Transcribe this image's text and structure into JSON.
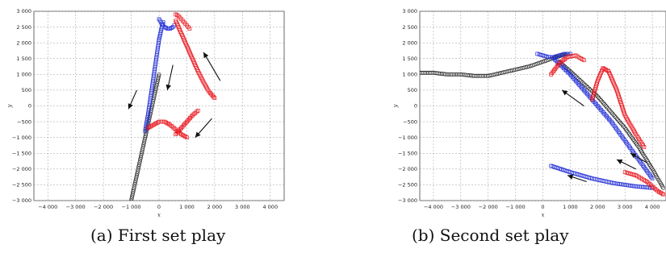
{
  "captions": [
    "(a) First set play",
    "(b) Second set play"
  ],
  "colors": {
    "red": "#e8141c",
    "blue": "#2431d6",
    "black": "#111111",
    "grid": "#9a9a9a"
  },
  "chart_data": [
    {
      "type": "scatter",
      "caption": "(a) First set play",
      "xlabel": "x",
      "ylabel": "y",
      "xlim": [
        -4500,
        4500
      ],
      "ylim": [
        -3000,
        3000
      ],
      "xticks": [
        -4000,
        -3000,
        -2000,
        -1000,
        0,
        1000,
        2000,
        3000,
        4000
      ],
      "yticks": [
        -3000,
        -2500,
        -2000,
        -1500,
        -1000,
        -500,
        0,
        500,
        1000,
        1500,
        2000,
        2500,
        3000
      ],
      "tick_labels_x": [
        "−4 000",
        "−3 000",
        "−2 000",
        "−1 000",
        "0",
        "1 000",
        "2 000",
        "3 000",
        "4 000"
      ],
      "tick_labels_y": [
        "−3 000",
        "−2 500",
        "−2 000",
        "−1 500",
        "−1 000",
        "−500",
        "0",
        "500",
        "1 000",
        "1 500",
        "2 000",
        "2 500",
        "3 000"
      ],
      "grid": true,
      "series": [
        {
          "color": "black",
          "marker": "circle-open",
          "x": [
            -1000,
            -900,
            -800,
            -700,
            -600,
            -500,
            -400,
            -300,
            -200,
            -100,
            0
          ],
          "y": [
            -3000,
            -2600,
            -2200,
            -1800,
            -1400,
            -1000,
            -600,
            -200,
            200,
            600,
            1000
          ]
        },
        {
          "color": "blue",
          "marker": "square-open",
          "x": [
            -500,
            -400,
            -300,
            -200,
            -100,
            0,
            100,
            150
          ],
          "y": [
            -800,
            -300,
            300,
            900,
            1500,
            2100,
            2500,
            2650
          ]
        },
        {
          "color": "blue",
          "marker": "square-open",
          "x": [
            0,
            100,
            200,
            300,
            400,
            500,
            550
          ],
          "y": [
            2750,
            2600,
            2500,
            2450,
            2450,
            2500,
            2550
          ]
        },
        {
          "color": "red",
          "marker": "square-open",
          "x": [
            600,
            800,
            1000,
            1200,
            1400,
            1600,
            1800,
            2000
          ],
          "y": [
            2700,
            2300,
            1900,
            1500,
            1100,
            750,
            450,
            250
          ]
        },
        {
          "color": "red",
          "marker": "square-open",
          "x": [
            600,
            700,
            800,
            900,
            1000,
            1100
          ],
          "y": [
            2900,
            2850,
            2750,
            2650,
            2550,
            2450
          ]
        },
        {
          "color": "red",
          "marker": "square-open",
          "x": [
            -400,
            -200,
            0,
            200,
            400,
            600,
            800,
            1000
          ],
          "y": [
            -700,
            -600,
            -500,
            -500,
            -600,
            -750,
            -900,
            -1000
          ]
        },
        {
          "color": "red",
          "marker": "square-open",
          "x": [
            600,
            800,
            1000,
            1200,
            1400
          ],
          "y": [
            -900,
            -700,
            -500,
            -300,
            -150
          ]
        }
      ],
      "arrows": [
        {
          "from": [
            -800,
            500
          ],
          "to": [
            -1100,
            -100
          ]
        },
        {
          "from": [
            500,
            1300
          ],
          "to": [
            300,
            500
          ]
        },
        {
          "from": [
            2200,
            800
          ],
          "to": [
            1600,
            1700
          ]
        },
        {
          "from": [
            1900,
            -400
          ],
          "to": [
            1300,
            -1000
          ]
        }
      ]
    },
    {
      "type": "scatter",
      "caption": "(b) Second set play",
      "xlabel": "x",
      "ylabel": "y",
      "xlim": [
        -4500,
        4500
      ],
      "ylim": [
        -3000,
        3000
      ],
      "xticks": [
        -4000,
        -3000,
        -2000,
        -1000,
        0,
        1000,
        2000,
        3000,
        4000
      ],
      "yticks": [
        -3000,
        -2500,
        -2000,
        -1500,
        -1000,
        -500,
        0,
        500,
        1000,
        1500,
        2000,
        2500,
        3000
      ],
      "tick_labels_x": [
        "−4 000",
        "−3 000",
        "−2 000",
        "−1 000",
        "0",
        "1 000",
        "2 000",
        "3 000",
        "4 000"
      ],
      "tick_labels_y": [
        "−3 000",
        "−2 500",
        "−2 000",
        "−1 500",
        "−1 000",
        "−500",
        "0",
        "500",
        "1 000",
        "1 500",
        "2 000",
        "2 500",
        "3 000"
      ],
      "grid": true,
      "series": [
        {
          "color": "black",
          "marker": "circle-open",
          "x": [
            -4500,
            -4000,
            -3500,
            -3000,
            -2500,
            -2000,
            -1500,
            -1000,
            -500,
            0,
            500,
            900
          ],
          "y": [
            1050,
            1050,
            1000,
            1000,
            950,
            950,
            1050,
            1150,
            1250,
            1400,
            1550,
            1650
          ]
        },
        {
          "color": "black",
          "marker": "circle-open",
          "x": [
            600,
            1000,
            1500,
            2000,
            2500,
            3000,
            3500,
            4000,
            4400
          ],
          "y": [
            1400,
            1100,
            700,
            300,
            -200,
            -700,
            -1300,
            -2000,
            -2600
          ]
        },
        {
          "color": "blue",
          "marker": "square-open",
          "x": [
            -200,
            0,
            200,
            400,
            600,
            800,
            1000
          ],
          "y": [
            1650,
            1600,
            1550,
            1550,
            1600,
            1650,
            1650
          ]
        },
        {
          "color": "blue",
          "marker": "square-open",
          "x": [
            400,
            1000,
            1500,
            2000,
            2500,
            3000,
            3500,
            4000
          ],
          "y": [
            1500,
            1000,
            500,
            0,
            -500,
            -1100,
            -1700,
            -2300
          ]
        },
        {
          "color": "blue",
          "marker": "square-open",
          "x": [
            300,
            1000,
            1800,
            2600,
            3400,
            4000
          ],
          "y": [
            -1900,
            -2100,
            -2300,
            -2450,
            -2550,
            -2600
          ]
        },
        {
          "color": "red",
          "marker": "square-open",
          "x": [
            300,
            600,
            900,
            1200,
            1500
          ],
          "y": [
            1000,
            1350,
            1550,
            1600,
            1450
          ]
        },
        {
          "color": "red",
          "marker": "square-open",
          "x": [
            1800,
            2000,
            2200,
            2400,
            2700,
            3000,
            3400,
            3700
          ],
          "y": [
            200,
            800,
            1200,
            1100,
            500,
            -300,
            -900,
            -1300
          ]
        },
        {
          "color": "red",
          "marker": "square-open",
          "x": [
            3000,
            3400,
            3800,
            4200,
            4400
          ],
          "y": [
            -2100,
            -2200,
            -2400,
            -2700,
            -2800
          ]
        }
      ],
      "arrows": [
        {
          "from": [
            1500,
            0
          ],
          "to": [
            700,
            500
          ]
        },
        {
          "from": [
            3400,
            -2000
          ],
          "to": [
            2700,
            -1700
          ]
        },
        {
          "from": [
            1600,
            -2400
          ],
          "to": [
            900,
            -2200
          ]
        },
        {
          "from": [
            3800,
            -1800
          ],
          "to": [
            3200,
            -1500
          ]
        }
      ]
    }
  ]
}
